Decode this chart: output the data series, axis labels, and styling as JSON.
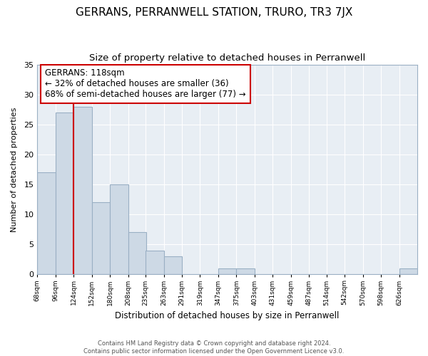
{
  "title": "GERRANS, PERRANWELL STATION, TRURO, TR3 7JX",
  "subtitle": "Size of property relative to detached houses in Perranwell",
  "xlabel": "Distribution of detached houses by size in Perranwell",
  "ylabel": "Number of detached properties",
  "footer_line1": "Contains HM Land Registry data © Crown copyright and database right 2024.",
  "footer_line2": "Contains public sector information licensed under the Open Government Licence v3.0.",
  "bins": [
    "68sqm",
    "96sqm",
    "124sqm",
    "152sqm",
    "180sqm",
    "208sqm",
    "235sqm",
    "263sqm",
    "291sqm",
    "319sqm",
    "347sqm",
    "375sqm",
    "403sqm",
    "431sqm",
    "459sqm",
    "487sqm",
    "514sqm",
    "542sqm",
    "570sqm",
    "598sqm",
    "626sqm"
  ],
  "values": [
    17,
    27,
    28,
    12,
    15,
    7,
    4,
    3,
    0,
    0,
    1,
    1,
    0,
    0,
    0,
    0,
    0,
    0,
    0,
    0,
    1
  ],
  "bar_color": "#cdd9e5",
  "bar_edgecolor": "#9ab0c4",
  "vline_x_bin_index": 2,
  "vline_color": "#cc0000",
  "annotation_title": "GERRANS: 118sqm",
  "annotation_line2": "← 32% of detached houses are smaller (36)",
  "annotation_line3": "68% of semi-detached houses are larger (77) →",
  "annotation_box_edgecolor": "#cc0000",
  "annotation_box_facecolor": "white",
  "plot_bg_color": "#e8eef4",
  "ylim": [
    0,
    35
  ],
  "yticks": [
    0,
    5,
    10,
    15,
    20,
    25,
    30,
    35
  ],
  "grid_color": "#ffffff",
  "title_fontsize": 11,
  "subtitle_fontsize": 9.5,
  "bin_starts": [
    68,
    96,
    124,
    152,
    180,
    208,
    235,
    263,
    291,
    319,
    347,
    375,
    403,
    431,
    459,
    487,
    514,
    542,
    570,
    598,
    626
  ],
  "bin_width": 28
}
